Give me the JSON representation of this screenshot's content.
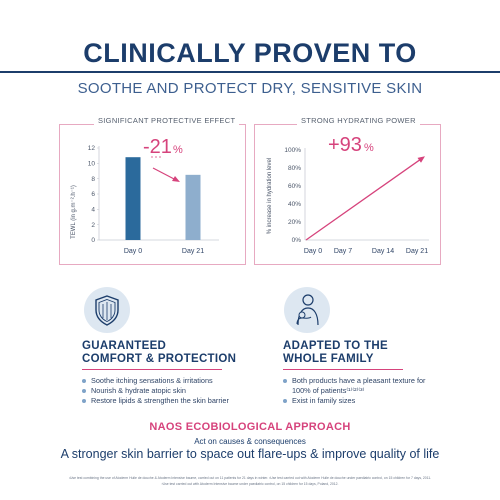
{
  "header": {
    "title": "CLINICALLY PROVEN TO",
    "subtitle": "SOOTHE AND PROTECT DRY, SENSITIVE SKIN"
  },
  "colors": {
    "navy": "#1c3d6b",
    "pink": "#d6437c",
    "bar_dark": "#2b6a9c",
    "bar_light": "#8eaecd"
  },
  "chart_data": [
    {
      "type": "bar",
      "title": "SIGNIFICANT PROTECTIVE EFFECT",
      "ylabel": "TEWL (in g.m⁻².h⁻¹)",
      "categories": [
        "Day 0",
        "Day 21"
      ],
      "values": [
        10.8,
        8.5
      ],
      "ylim": [
        0,
        12
      ],
      "yticks": [
        "0",
        "2",
        "4",
        "6",
        "8",
        "10",
        "12"
      ],
      "annotation": {
        "value": "-21",
        "unit": "%"
      }
    },
    {
      "type": "line",
      "title": "STRONG HYDRATING POWER",
      "ylabel": "% increase in hydration level",
      "categories": [
        "Day 0",
        "Day 7",
        "Day 14",
        "Day 21"
      ],
      "values": [
        0,
        31,
        62,
        93
      ],
      "ylim": [
        0,
        100
      ],
      "yticks": [
        "0%",
        "20%",
        "40%",
        "60%",
        "80%",
        "100%"
      ],
      "annotation": {
        "value": "+93",
        "unit": "%"
      }
    }
  ],
  "blocks": [
    {
      "icon": "shield-icon",
      "title_line1": "GUARANTEED",
      "title_line2": "COMFORT & PROTECTION",
      "bullets": [
        "Soothe itching sensations & irritations",
        "Nourish & hydrate atopic skin",
        "Restore lipids & strengthen the skin barrier"
      ]
    },
    {
      "icon": "family-icon",
      "title_line1": "ADAPTED TO THE",
      "title_line2": "WHOLE FAMILY",
      "bullets": [
        "Both products have a pleasant texture for 100% of patients⁽¹⁾⁽²⁾⁽³⁾",
        "Exist in family sizes"
      ]
    }
  ],
  "approach": {
    "title": "NAOS ECOBIOLOGICAL APPROACH",
    "subtitle": "Act on causes & consequences",
    "claim": "A stronger skin barrier to space out flare-ups & improve quality of life"
  },
  "footnotes": [
    "¹Use test combining the use of Atoderm Huile de douche & Atoderm Intensive baume, carried out on 11 patients for 21 days in winter. ²Use test carried out with Atoderm Huile de douche under paediatric control, on 15 children for 7 days, 2011.",
    "³Use test carried out with Atoderm Intensive baume under paediatric control, on 15 children for 15 days, Poland, 2012."
  ]
}
